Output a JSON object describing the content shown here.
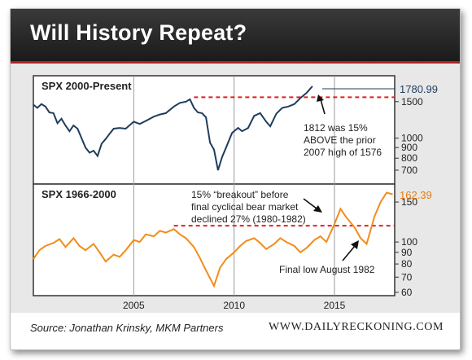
{
  "header": {
    "title": "Will History Repeat?"
  },
  "footer": {
    "source": "Source: Jonathan Krinsky, MKM Partners",
    "site": "WWW.DAILYRECKONING.COM"
  },
  "colors": {
    "top_line": "#1f3d5c",
    "bottom_line": "#f28c1a",
    "ref_line": "#e02020",
    "title_accent": "#b22222"
  },
  "chart_data": [
    {
      "type": "line",
      "title": "SPX 2000-Present",
      "scale": "log",
      "ylim": [
        600,
        2000
      ],
      "xlim": [
        2000,
        2018
      ],
      "y_ticks": [
        700,
        800,
        900,
        1000,
        1500
      ],
      "x_ticks": [
        2005,
        2010,
        2015
      ],
      "grid": "vertical at x ticks",
      "series": [
        {
          "x": [
            2000.0,
            2000.2,
            2000.4,
            2000.6,
            2000.8,
            2001.0,
            2001.2,
            2001.4,
            2001.6,
            2001.8,
            2002.0,
            2002.2,
            2002.4,
            2002.6,
            2002.8,
            2003.0,
            2003.2,
            2003.4,
            2003.6,
            2003.8,
            2004.0,
            2004.3,
            2004.6,
            2005.0,
            2005.3,
            2005.6,
            2006.0,
            2006.3,
            2006.6,
            2007.0,
            2007.3,
            2007.6,
            2007.8,
            2008.0,
            2008.2,
            2008.4,
            2008.6,
            2008.8,
            2009.0,
            2009.2,
            2009.4,
            2009.6,
            2009.9,
            2010.2,
            2010.4,
            2010.7,
            2011.0,
            2011.3,
            2011.6,
            2011.8,
            2012.1,
            2012.4,
            2012.7,
            2013.0,
            2013.3,
            2013.6,
            2013.9
          ],
          "values": [
            1450,
            1400,
            1460,
            1420,
            1330,
            1320,
            1180,
            1240,
            1150,
            1080,
            1150,
            1110,
            1000,
            900,
            850,
            870,
            820,
            940,
            990,
            1050,
            1110,
            1120,
            1110,
            1200,
            1170,
            1210,
            1270,
            1300,
            1320,
            1420,
            1480,
            1500,
            1540,
            1400,
            1330,
            1320,
            1260,
            950,
            880,
            700,
            810,
            900,
            1060,
            1120,
            1080,
            1120,
            1280,
            1320,
            1200,
            1140,
            1310,
            1400,
            1420,
            1460,
            1560,
            1650,
            1780
          ]
        }
      ],
      "reference_line": {
        "value": 1576
      },
      "annotations": [
        {
          "text": "1780.99",
          "kind": "end value label"
        },
        {
          "text": "1812 was 15%",
          "kind": "callout line 1"
        },
        {
          "text": "ABOVE the prior",
          "kind": "callout line 2"
        },
        {
          "text": "2007 high of 1576",
          "kind": "callout line 3"
        }
      ]
    },
    {
      "type": "line",
      "title": "SPX 1966-2000",
      "scale": "log",
      "ylim": [
        58,
        180
      ],
      "y_ticks": [
        60,
        70,
        80,
        90,
        100,
        150
      ],
      "series": [
        {
          "x": [
            2000.0,
            2000.3,
            2000.6,
            2001.0,
            2001.3,
            2001.6,
            2002.0,
            2002.3,
            2002.6,
            2003.0,
            2003.3,
            2003.6,
            2004.0,
            2004.3,
            2004.6,
            2005.0,
            2005.3,
            2005.6,
            2006.0,
            2006.3,
            2006.6,
            2007.0,
            2007.3,
            2007.6,
            2008.0,
            2008.3,
            2008.6,
            2009.0,
            2009.3,
            2009.6,
            2010.0,
            2010.3,
            2010.6,
            2011.0,
            2011.3,
            2011.6,
            2012.0,
            2012.3,
            2012.6,
            2013.0,
            2013.3,
            2013.6,
            2014.0,
            2014.3,
            2014.6,
            2015.0,
            2015.3,
            2015.6,
            2016.0,
            2016.3,
            2016.6,
            2017.0,
            2017.3,
            2017.6,
            2017.9
          ],
          "values": [
            84,
            92,
            96,
            99,
            103,
            95,
            104,
            96,
            92,
            98,
            90,
            82,
            88,
            86,
            92,
            102,
            100,
            108,
            106,
            112,
            110,
            114,
            108,
            104,
            95,
            85,
            75,
            64,
            77,
            84,
            90,
            96,
            101,
            104,
            99,
            93,
            98,
            104,
            100,
            96,
            90,
            94,
            102,
            106,
            100,
            120,
            140,
            128,
            116,
            104,
            98,
            130,
            150,
            165,
            162.39
          ]
        }
      ],
      "reference_line": {
        "value": 118
      },
      "annotations": [
        {
          "text": "162.39",
          "kind": "end value label"
        },
        {
          "text": "15% “breakout” before",
          "kind": "callout line 1"
        },
        {
          "text": "final cyclical bear market",
          "kind": "callout line 2"
        },
        {
          "text": "declined 27% (1980-1982)",
          "kind": "callout line 3"
        },
        {
          "text": "Final low August 1982",
          "kind": "low callout"
        }
      ]
    }
  ]
}
